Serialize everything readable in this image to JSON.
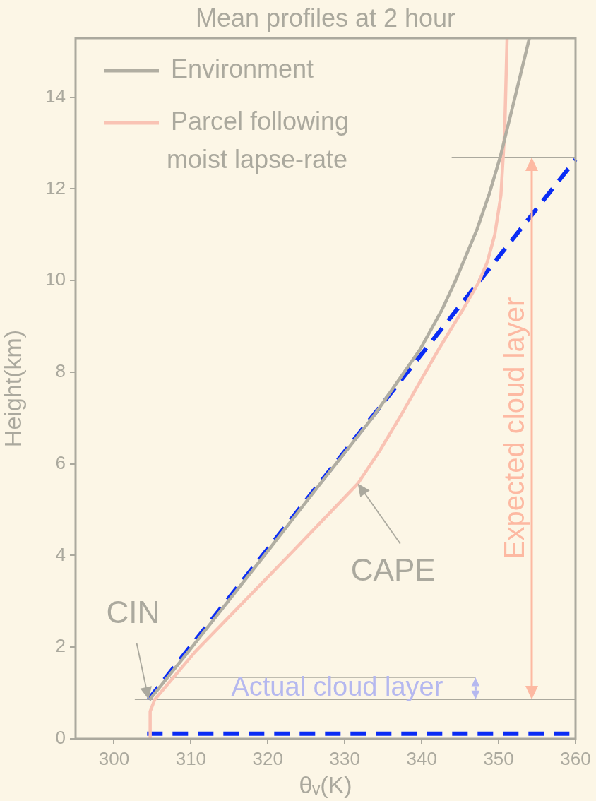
{
  "chart_data": {
    "type": "line",
    "title": "Mean profiles at 2 hour",
    "xlabel": "θᵥ(K)",
    "ylabel": "Height(km)",
    "xlim": [
      295,
      360
    ],
    "ylim": [
      0,
      15.29
    ],
    "xticks": [
      300,
      310,
      320,
      330,
      340,
      350,
      360
    ],
    "yticks": [
      0,
      2,
      4,
      6,
      8,
      10,
      12,
      14
    ],
    "grid": false,
    "legend": "top left",
    "marker": "none",
    "line_style": "solid",
    "series": [
      {
        "name": "Environment",
        "color": "#b1aea2",
        "x": [
          304.6,
          309.7,
          320.0,
          326.5,
          333.7,
          339.8,
          342.6,
          344.3,
          345.9,
          347.2,
          348.8,
          350.2,
          352.2,
          354.0
        ],
        "values": [
          0.85,
          1.91,
          4.1,
          5.5,
          7.03,
          8.5,
          9.35,
          9.96,
          10.6,
          11.12,
          11.9,
          12.69,
          14.05,
          15.29
        ]
      },
      {
        "name": "Parcel following moist lapse-rate",
        "color": "#f9c3b4",
        "x": [
          304.7,
          304.7,
          305.3,
          310.6,
          323.3,
          331.7,
          334.6,
          337.2,
          342.2,
          345.3,
          347.4,
          348.5,
          349.5,
          350.3,
          350.8,
          351.1
        ],
        "values": [
          0,
          0.6,
          0.86,
          1.91,
          4.1,
          5.57,
          6.3,
          7.03,
          8.5,
          9.35,
          9.96,
          10.39,
          11.0,
          11.86,
          13.3,
          15.29
        ]
      },
      {
        "color": "#0a2cf5",
        "line_style": "dashed",
        "x": [
          304.5,
          360
        ],
        "values": [
          0.86,
          12.64
        ]
      },
      {
        "color": "#0a2cf5",
        "line_style": "dashed",
        "x": [
          304.3,
          360
        ],
        "values": [
          0.11,
          0.11
        ]
      },
      {
        "color": "#aba99e",
        "x": [
          343.9,
          360
        ],
        "values": [
          12.69,
          12.69
        ]
      },
      {
        "color": "#aba99e",
        "x": [
          307.3,
          347.0
        ],
        "values": [
          1.34,
          1.34
        ]
      },
      {
        "color": "#aba99e",
        "x": [
          302.7,
          360
        ],
        "values": [
          0.86,
          0.86
        ]
      }
    ],
    "annotations": [
      {
        "text": "CIN",
        "x": 304.5,
        "y": 0.86
      },
      {
        "text": "CAPE",
        "x": 331.7,
        "y": 5.57
      },
      "Expected cloud layer",
      "Actual cloud layer"
    ]
  }
}
